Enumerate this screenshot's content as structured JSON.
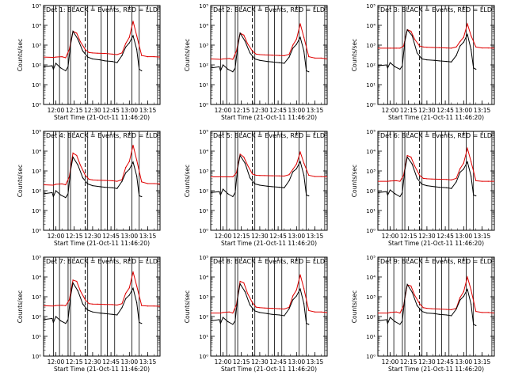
{
  "figure": {
    "ylabel": "Counts/sec",
    "xlabel": "Start Time (21-Oct-11 11:46:20)"
  },
  "axis": {
    "x_ticks": [
      "12:00",
      "12:15",
      "12:30",
      "12:45",
      "13:00",
      "13:15"
    ],
    "x_tick_minutes": [
      0,
      15,
      30,
      45,
      60,
      75
    ],
    "x_range_minutes": [
      -10,
      85
    ],
    "y_ticks": [
      "10⁰",
      "10¹",
      "10²",
      "10³",
      "10⁴",
      "10⁵"
    ],
    "y_scale": "log",
    "y_range_log10": [
      0,
      5
    ]
  },
  "colors": {
    "events": "#000000",
    "lld": "#e00000",
    "markers": "#000000"
  },
  "chart_data": [
    {
      "type": "line",
      "title": "Det 1: BLACK = Events, RED = LLD",
      "markers_solid_minutes": [
        -2,
        3,
        10,
        12,
        26,
        37,
        42,
        48,
        62,
        68,
        83
      ],
      "markers_dashed_minutes": [
        24
      ],
      "series": [
        {
          "x": [
            -10,
            -2,
            0,
            5,
            8,
            11,
            14,
            17,
            20,
            24,
            27,
            30,
            34,
            40,
            46,
            50,
            54,
            57,
            60,
            63,
            66,
            70,
            75,
            80,
            85
          ],
          "y": [
            250,
            240,
            250,
            260,
            230,
            600,
            5000,
            4000,
            1500,
            600,
            420,
            400,
            390,
            380,
            350,
            330,
            400,
            1200,
            2500,
            16000,
            3000,
            300,
            260,
            260,
            250
          ]
        },
        {
          "x": [
            -10,
            -3,
            -2,
            0,
            4,
            8,
            10,
            12,
            14,
            18,
            22,
            26,
            30,
            36,
            40,
            46,
            50,
            54,
            57,
            60,
            63,
            66,
            68,
            70
          ],
          "y": [
            80,
            90,
            60,
            120,
            70,
            50,
            80,
            1000,
            5000,
            2000,
            500,
            250,
            200,
            180,
            160,
            150,
            130,
            300,
            800,
            1300,
            3000,
            600,
            60,
            50
          ]
        }
      ]
    },
    {
      "type": "line",
      "title": "Det 2: BLACK = Events, RED = LLD",
      "markers_solid_minutes": [
        -2,
        3,
        10,
        12,
        26,
        37,
        42,
        48,
        62,
        68,
        83
      ],
      "markers_dashed_minutes": [
        24
      ],
      "series": [
        {
          "x": [
            -10,
            -2,
            0,
            5,
            8,
            11,
            14,
            17,
            20,
            24,
            27,
            30,
            34,
            40,
            46,
            50,
            54,
            57,
            60,
            63,
            66,
            70,
            75,
            80,
            85
          ],
          "y": [
            200,
            190,
            200,
            210,
            190,
            500,
            4000,
            3200,
            1200,
            500,
            350,
            330,
            320,
            310,
            300,
            290,
            340,
            1000,
            2000,
            12000,
            2500,
            260,
            220,
            220,
            200
          ]
        },
        {
          "x": [
            -10,
            -3,
            -2,
            0,
            4,
            8,
            10,
            12,
            14,
            18,
            22,
            26,
            30,
            36,
            40,
            46,
            50,
            54,
            57,
            60,
            63,
            66,
            68,
            70
          ],
          "y": [
            70,
            80,
            50,
            100,
            60,
            45,
            70,
            800,
            4000,
            1600,
            400,
            200,
            170,
            150,
            140,
            130,
            120,
            250,
            700,
            1100,
            2500,
            500,
            50,
            45
          ]
        }
      ]
    },
    {
      "type": "line",
      "title": "Det 3: BLACK = Events, RED = LLD",
      "markers_solid_minutes": [
        -2,
        3,
        10,
        12,
        26,
        37,
        42,
        48,
        62,
        68,
        83
      ],
      "markers_dashed_minutes": [
        24
      ],
      "series": [
        {
          "x": [
            -10,
            -2,
            0,
            5,
            8,
            11,
            14,
            17,
            20,
            24,
            27,
            30,
            34,
            40,
            46,
            50,
            54,
            57,
            60,
            63,
            66,
            70,
            75,
            80,
            85
          ],
          "y": [
            700,
            700,
            700,
            700,
            700,
            900,
            6000,
            5000,
            2000,
            900,
            800,
            780,
            760,
            740,
            720,
            700,
            800,
            1500,
            2500,
            12000,
            3000,
            800,
            720,
            720,
            700
          ]
        },
        {
          "x": [
            -10,
            -3,
            -2,
            0,
            4,
            8,
            10,
            12,
            14,
            18,
            22,
            26,
            30,
            36,
            40,
            46,
            50,
            54,
            57,
            60,
            63,
            66,
            68,
            70
          ],
          "y": [
            90,
            100,
            70,
            130,
            80,
            60,
            90,
            1500,
            6000,
            3000,
            400,
            200,
            180,
            170,
            160,
            150,
            140,
            300,
            900,
            1400,
            3500,
            600,
            70,
            60
          ]
        }
      ]
    },
    {
      "type": "line",
      "title": "Det 4: BLACK = Events, RED = LLD",
      "markers_solid_minutes": [
        -2,
        3,
        10,
        12,
        26,
        37,
        42,
        48,
        62,
        68,
        83
      ],
      "markers_dashed_minutes": [
        24
      ],
      "series": [
        {
          "x": [
            -10,
            -2,
            0,
            5,
            8,
            11,
            14,
            17,
            20,
            24,
            27,
            30,
            34,
            40,
            46,
            50,
            54,
            57,
            60,
            63,
            66,
            70,
            75,
            80,
            85
          ],
          "y": [
            200,
            190,
            210,
            220,
            200,
            500,
            8000,
            6000,
            2000,
            600,
            380,
            350,
            340,
            330,
            320,
            300,
            360,
            1500,
            3000,
            20000,
            3500,
            280,
            230,
            230,
            220
          ]
        },
        {
          "x": [
            -10,
            -3,
            -2,
            0,
            4,
            8,
            10,
            12,
            14,
            18,
            22,
            26,
            30,
            36,
            40,
            46,
            50,
            54,
            57,
            60,
            63,
            66,
            68,
            70
          ],
          "y": [
            70,
            80,
            50,
            100,
            60,
            45,
            70,
            1000,
            5000,
            2000,
            450,
            220,
            180,
            160,
            150,
            140,
            130,
            300,
            800,
            1200,
            2800,
            550,
            55,
            50
          ]
        }
      ]
    },
    {
      "type": "line",
      "title": "Det 5: BLACK = Events, RED = LLD",
      "markers_solid_minutes": [
        -2,
        3,
        10,
        12,
        26,
        37,
        42,
        48,
        62,
        68,
        83
      ],
      "markers_dashed_minutes": [
        24
      ],
      "series": [
        {
          "x": [
            -10,
            -2,
            0,
            5,
            8,
            11,
            14,
            17,
            20,
            24,
            27,
            30,
            34,
            40,
            46,
            50,
            54,
            57,
            60,
            63,
            66,
            70,
            75,
            80,
            85
          ],
          "y": [
            500,
            500,
            500,
            500,
            500,
            800,
            7000,
            5000,
            2000,
            700,
            600,
            590,
            580,
            570,
            560,
            550,
            650,
            1200,
            2200,
            9000,
            2500,
            600,
            520,
            520,
            500
          ]
        },
        {
          "x": [
            -10,
            -3,
            -2,
            0,
            4,
            8,
            10,
            12,
            14,
            18,
            22,
            26,
            30,
            36,
            40,
            46,
            50,
            54,
            57,
            60,
            63,
            66,
            68,
            70
          ],
          "y": [
            80,
            90,
            60,
            120,
            70,
            50,
            80,
            1400,
            6000,
            2500,
            450,
            220,
            190,
            170,
            160,
            150,
            140,
            320,
            900,
            1300,
            3000,
            600,
            60,
            55
          ]
        }
      ]
    },
    {
      "type": "line",
      "title": "Det 6: BLACK = Events, RED = LLD",
      "markers_solid_minutes": [
        -2,
        3,
        10,
        12,
        26,
        37,
        42,
        48,
        62,
        68,
        83
      ],
      "markers_dashed_minutes": [
        24
      ],
      "series": [
        {
          "x": [
            -10,
            -2,
            0,
            5,
            8,
            11,
            14,
            17,
            20,
            24,
            27,
            30,
            34,
            40,
            46,
            50,
            54,
            57,
            60,
            63,
            66,
            70,
            75,
            80,
            85
          ],
          "y": [
            300,
            300,
            310,
            320,
            300,
            600,
            6000,
            5000,
            1800,
            600,
            420,
            400,
            390,
            380,
            370,
            350,
            420,
            1300,
            2500,
            14000,
            3000,
            320,
            300,
            300,
            300
          ]
        },
        {
          "x": [
            -10,
            -3,
            -2,
            0,
            4,
            8,
            10,
            12,
            14,
            18,
            22,
            26,
            30,
            36,
            40,
            46,
            50,
            54,
            57,
            60,
            63,
            66,
            68,
            70
          ],
          "y": [
            80,
            90,
            60,
            110,
            70,
            50,
            80,
            1100,
            5000,
            2200,
            420,
            210,
            180,
            160,
            150,
            140,
            130,
            280,
            850,
            1250,
            2900,
            550,
            60,
            55
          ]
        }
      ]
    },
    {
      "type": "line",
      "title": "Det 7: BLACK = Events, RED = LLD",
      "markers_solid_minutes": [
        -2,
        3,
        10,
        12,
        26,
        37,
        42,
        48,
        62,
        68,
        83
      ],
      "markers_dashed_minutes": [
        24
      ],
      "series": [
        {
          "x": [
            -10,
            -2,
            0,
            5,
            8,
            11,
            14,
            17,
            20,
            24,
            27,
            30,
            34,
            40,
            46,
            50,
            54,
            57,
            60,
            63,
            66,
            70,
            75,
            80,
            85
          ],
          "y": [
            350,
            340,
            360,
            370,
            350,
            700,
            7000,
            6000,
            2000,
            700,
            450,
            430,
            420,
            410,
            400,
            380,
            450,
            1500,
            2800,
            18000,
            3500,
            360,
            340,
            340,
            330
          ]
        },
        {
          "x": [
            -10,
            -3,
            -2,
            0,
            4,
            8,
            10,
            12,
            14,
            18,
            22,
            26,
            30,
            36,
            40,
            46,
            50,
            54,
            57,
            60,
            63,
            66,
            68,
            70
          ],
          "y": [
            70,
            80,
            50,
            100,
            60,
            45,
            70,
            1000,
            5000,
            2000,
            430,
            210,
            170,
            150,
            140,
            130,
            120,
            280,
            800,
            1200,
            2700,
            500,
            50,
            45
          ]
        }
      ]
    },
    {
      "type": "line",
      "title": "Det 8: BLACK = Events, RED = LLD",
      "markers_solid_minutes": [
        -2,
        3,
        10,
        12,
        26,
        37,
        42,
        48,
        62,
        68,
        83
      ],
      "markers_dashed_minutes": [
        24
      ],
      "series": [
        {
          "x": [
            -10,
            -2,
            0,
            5,
            8,
            11,
            14,
            17,
            20,
            24,
            27,
            30,
            34,
            40,
            46,
            50,
            54,
            57,
            60,
            63,
            66,
            70,
            75,
            80,
            85
          ],
          "y": [
            150,
            150,
            160,
            170,
            150,
            400,
            6000,
            5000,
            1500,
            500,
            300,
            280,
            270,
            260,
            250,
            240,
            290,
            1100,
            2200,
            13000,
            2600,
            200,
            170,
            170,
            160
          ]
        },
        {
          "x": [
            -10,
            -3,
            -2,
            0,
            4,
            8,
            10,
            12,
            14,
            18,
            22,
            26,
            30,
            36,
            40,
            46,
            50,
            54,
            57,
            60,
            63,
            66,
            68,
            70
          ],
          "y": [
            60,
            70,
            45,
            90,
            55,
            40,
            60,
            900,
            4500,
            1800,
            380,
            190,
            160,
            140,
            130,
            120,
            110,
            250,
            700,
            1100,
            2500,
            450,
            45,
            40
          ]
        }
      ]
    },
    {
      "type": "line",
      "title": "Det 9: BLACK = Events, RED = LLD",
      "markers_solid_minutes": [
        -2,
        3,
        10,
        12,
        26,
        37,
        42,
        48,
        62,
        68,
        83
      ],
      "markers_dashed_minutes": [
        24
      ],
      "series": [
        {
          "x": [
            -10,
            -2,
            0,
            5,
            8,
            11,
            14,
            17,
            20,
            24,
            27,
            30,
            34,
            40,
            46,
            50,
            54,
            57,
            60,
            63,
            66,
            70,
            75,
            80,
            85
          ],
          "y": [
            150,
            150,
            160,
            170,
            150,
            350,
            4000,
            3500,
            1200,
            450,
            280,
            260,
            250,
            240,
            230,
            220,
            260,
            900,
            1800,
            10000,
            2200,
            180,
            160,
            160,
            150
          ]
        },
        {
          "x": [
            -10,
            -3,
            -2,
            0,
            4,
            8,
            10,
            12,
            14,
            18,
            22,
            26,
            30,
            36,
            40,
            46,
            50,
            54,
            57,
            60,
            63,
            66,
            68,
            70
          ],
          "y": [
            60,
            70,
            45,
            90,
            55,
            40,
            60,
            900,
            4200,
            1700,
            360,
            180,
            150,
            140,
            130,
            120,
            110,
            240,
            680,
            1050,
            2400,
            430,
            40,
            35
          ]
        }
      ]
    }
  ]
}
